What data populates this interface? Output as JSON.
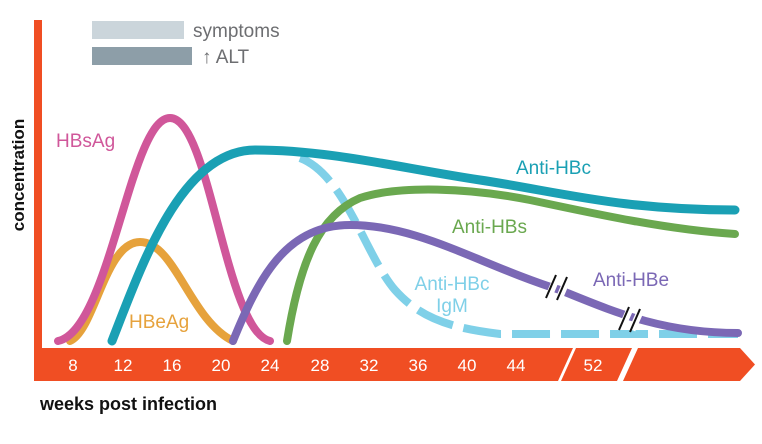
{
  "legend": {
    "items": [
      {
        "label": "symptoms",
        "color": "#cbd5db"
      },
      {
        "label": "↑ ALT",
        "color": "#8d9ea8"
      }
    ]
  },
  "axes": {
    "y_label": "concentration",
    "x_label": "weeks post infection",
    "axis_color": "#f04e23",
    "ticks": [
      "8",
      "12",
      "16",
      "20",
      "24",
      "28",
      "32",
      "36",
      "40",
      "44",
      "52"
    ]
  },
  "curves": {
    "hbsag": {
      "label": "HBsAg",
      "color": "#d0579a"
    },
    "hbeag": {
      "label": "HBeAg",
      "color": "#e6a23c"
    },
    "anti_hbc": {
      "label": "Anti-HBc",
      "color": "#1aa0b4"
    },
    "anti_hbc_igm": {
      "label_line1": "Anti-HBc",
      "label_line2": "IgM",
      "color": "#7fd0e8"
    },
    "anti_hbs": {
      "label": "Anti-HBs",
      "color": "#6aa84f"
    },
    "anti_hbe": {
      "label": "Anti-HBe",
      "color": "#7b68b5"
    }
  }
}
